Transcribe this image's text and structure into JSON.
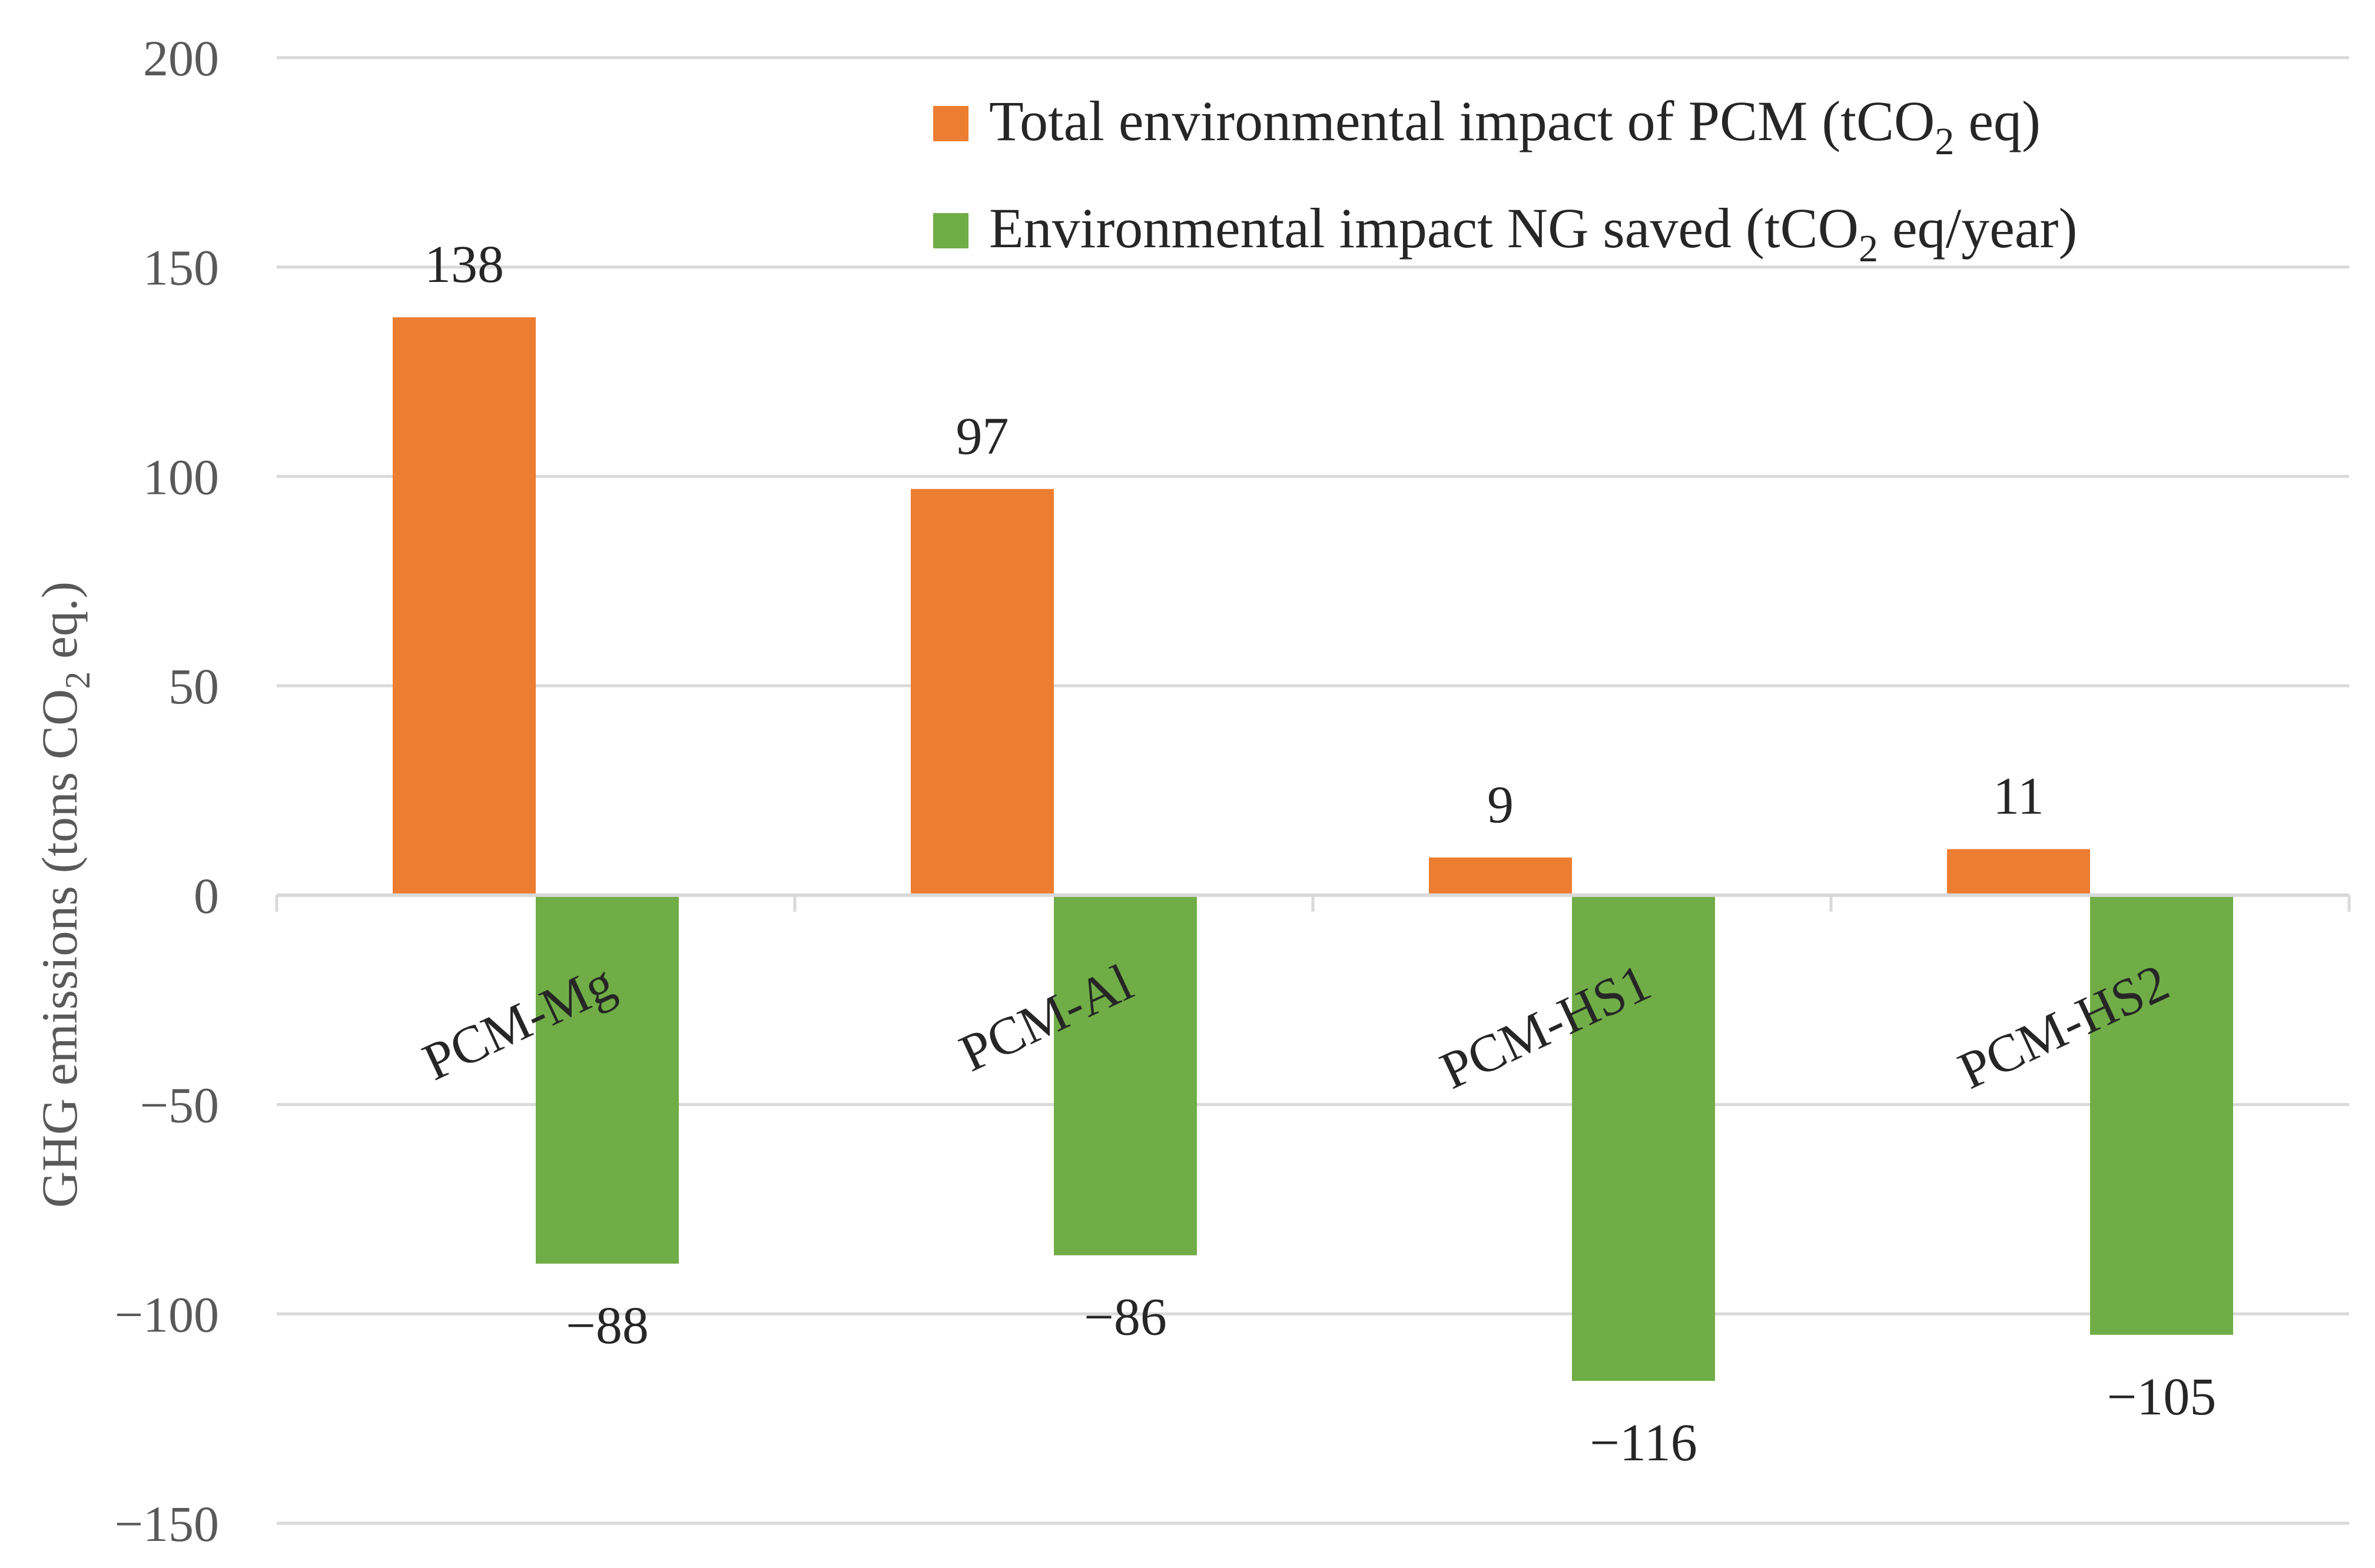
{
  "chart_data": {
    "type": "bar",
    "title": "",
    "xlabel": "",
    "ylabel_parts": {
      "before": "GHG emissions (tons CO",
      "sub": "2",
      "after": " eq.)"
    },
    "ylim": [
      -150,
      200
    ],
    "yticks": [
      200,
      150,
      100,
      50,
      0,
      -50,
      -100,
      -150
    ],
    "ytick_labels": [
      "200",
      "150",
      "100",
      "50",
      "0",
      "−50",
      "−100",
      "−150"
    ],
    "grid": true,
    "legend_position": "top-right",
    "categories": [
      "PCM-Mg",
      "PCM-Al",
      "PCM-HS1",
      "PCM-HS2"
    ],
    "series": [
      {
        "name": "Total environmental impact of PCM (tCO2 eq)",
        "legend_parts": {
          "before": "Total environmental impact of PCM (tCO",
          "sub": "2",
          "after": " eq)"
        },
        "color": "#ED7D31",
        "values": [
          138,
          97,
          9,
          11
        ],
        "labels": [
          "138",
          "97",
          "9",
          "11"
        ]
      },
      {
        "name": "Environmental impact NG saved (tCO2 eq/year)",
        "legend_parts": {
          "before": "Environmental impact NG saved (tCO",
          "sub": "2",
          "after": " eq/year)"
        },
        "color": "#70AD47",
        "values": [
          -88,
          -86,
          -116,
          -105
        ],
        "labels": [
          "−88",
          "−86",
          "−116",
          "−105"
        ]
      }
    ]
  }
}
